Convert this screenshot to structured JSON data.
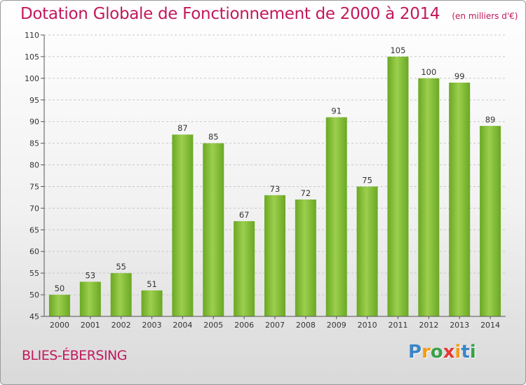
{
  "title": "Dotation Globale de Fonctionnement de 2000 à 2014",
  "unit": "(en milliers d'€)",
  "commune": "BLIES-ÉBERSING",
  "logo": {
    "letters": [
      "P",
      "r",
      "o",
      "x",
      "i",
      "t",
      "i"
    ],
    "colors": [
      "#3a86c8",
      "#f39c12",
      "#3aa04a",
      "#e53935",
      "#f39c12",
      "#3a86c8",
      "#3aa04a"
    ]
  },
  "colors": {
    "bar": "#7dbb2e",
    "bar_light": "#a6d55a",
    "accent": "#c2185b"
  },
  "chart_data": {
    "type": "bar",
    "title": "Dotation Globale de Fonctionnement de 2000 à 2014",
    "categories": [
      "2000",
      "2001",
      "2002",
      "2003",
      "2004",
      "2005",
      "2006",
      "2007",
      "2008",
      "2009",
      "2010",
      "2011",
      "2012",
      "2013",
      "2014"
    ],
    "values": [
      50,
      53,
      55,
      51,
      87,
      85,
      67,
      73,
      72,
      91,
      75,
      105,
      100,
      99,
      89
    ],
    "ylim": [
      45,
      110
    ],
    "yticks": [
      45,
      50,
      55,
      60,
      65,
      70,
      75,
      80,
      85,
      90,
      95,
      100,
      105,
      110
    ],
    "grid": true
  }
}
